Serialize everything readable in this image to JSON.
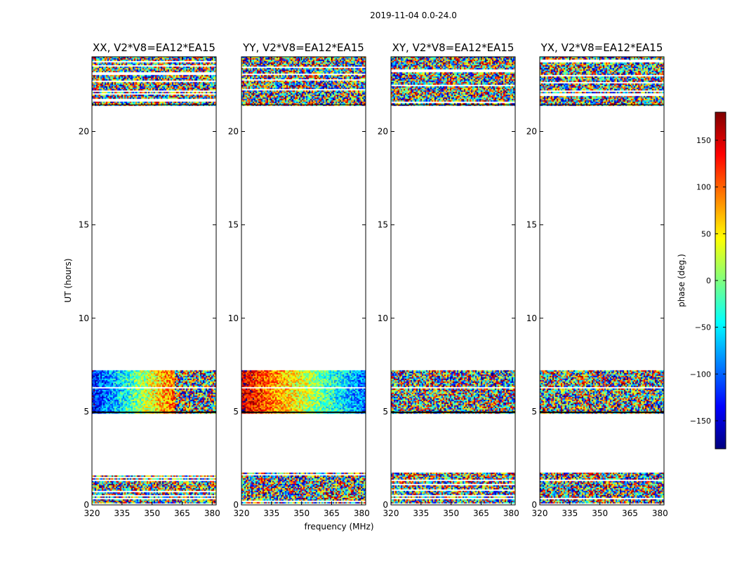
{
  "figure": {
    "suptitle": "2019-11-04 0.0-24.0",
    "xlabel": "frequency (MHz)",
    "ylabel": "UT (hours)",
    "colorbar_label": "phase (deg.)"
  },
  "chart_data": {
    "type": "heatmap",
    "colormap": "jet",
    "xlim": [
      320,
      382
    ],
    "ylim": [
      0,
      24
    ],
    "x_ticks": [
      320,
      335,
      350,
      365,
      380
    ],
    "y_ticks": [
      0,
      5,
      10,
      15,
      20
    ],
    "colorbar": {
      "vmin": -180,
      "vmax": 180,
      "ticks": [
        150,
        100,
        50,
        0,
        -50,
        -100,
        -150
      ],
      "tick_labels": [
        "150",
        "100",
        "50",
        "0",
        "−50",
        "−100",
        "−150"
      ],
      "colors": [
        "#00007f",
        "#0000ff",
        "#007fff",
        "#00ffff",
        "#7fff7f",
        "#ffff00",
        "#ff7f00",
        "#ff0000",
        "#7f0000"
      ]
    },
    "data_time_ranges_hours": [
      {
        "start": 0.1,
        "end": 1.7,
        "noisy": true
      },
      {
        "start": 4.95,
        "end": 7.2,
        "noisy": false
      },
      {
        "start": 21.4,
        "end": 24.0,
        "noisy": true
      }
    ],
    "panels": [
      {
        "title": "XX, V2*V8=EA12*EA15",
        "pattern": "phase_gradient_xx"
      },
      {
        "title": "YY, V2*V8=EA12*EA15",
        "pattern": "phase_gradient_yy"
      },
      {
        "title": "XY, V2*V8=EA12*EA15",
        "pattern": "noise"
      },
      {
        "title": "YX, V2*V8=EA12*EA15",
        "pattern": "noise"
      }
    ]
  }
}
